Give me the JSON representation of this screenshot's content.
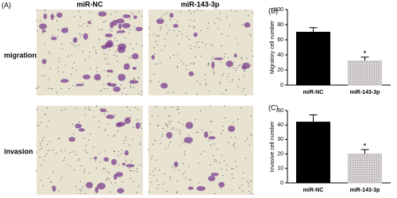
{
  "figure": {
    "panel_label": "(A)",
    "columns": [
      "miR-NC",
      "miR-143-3p"
    ],
    "rows": [
      "migration",
      "invasion"
    ]
  },
  "chart_data": [
    {
      "type": "bar",
      "panel_label": "(B)",
      "y_label": "Migratory  cell number",
      "categories": [
        "miR-NC",
        "miR-143-3p"
      ],
      "values": [
        70,
        32
      ],
      "errors": [
        6,
        5
      ],
      "colors": [
        "#000000",
        "#c8c4c4"
      ],
      "significance": [
        null,
        "*"
      ],
      "ylim": [
        0,
        100
      ],
      "yticks": [
        0,
        20,
        40,
        60,
        80,
        100
      ]
    },
    {
      "type": "bar",
      "panel_label": "(C)",
      "y_label": "Invasive cell number",
      "categories": [
        "miR-NC",
        "miR-143-3p"
      ],
      "values": [
        42,
        20
      ],
      "errors": [
        5,
        3
      ],
      "colors": [
        "#000000",
        "#c8c4c4"
      ],
      "significance": [
        null,
        "*"
      ],
      "ylim": [
        0,
        50
      ],
      "yticks": [
        0,
        10,
        20,
        30,
        40,
        50
      ]
    }
  ]
}
